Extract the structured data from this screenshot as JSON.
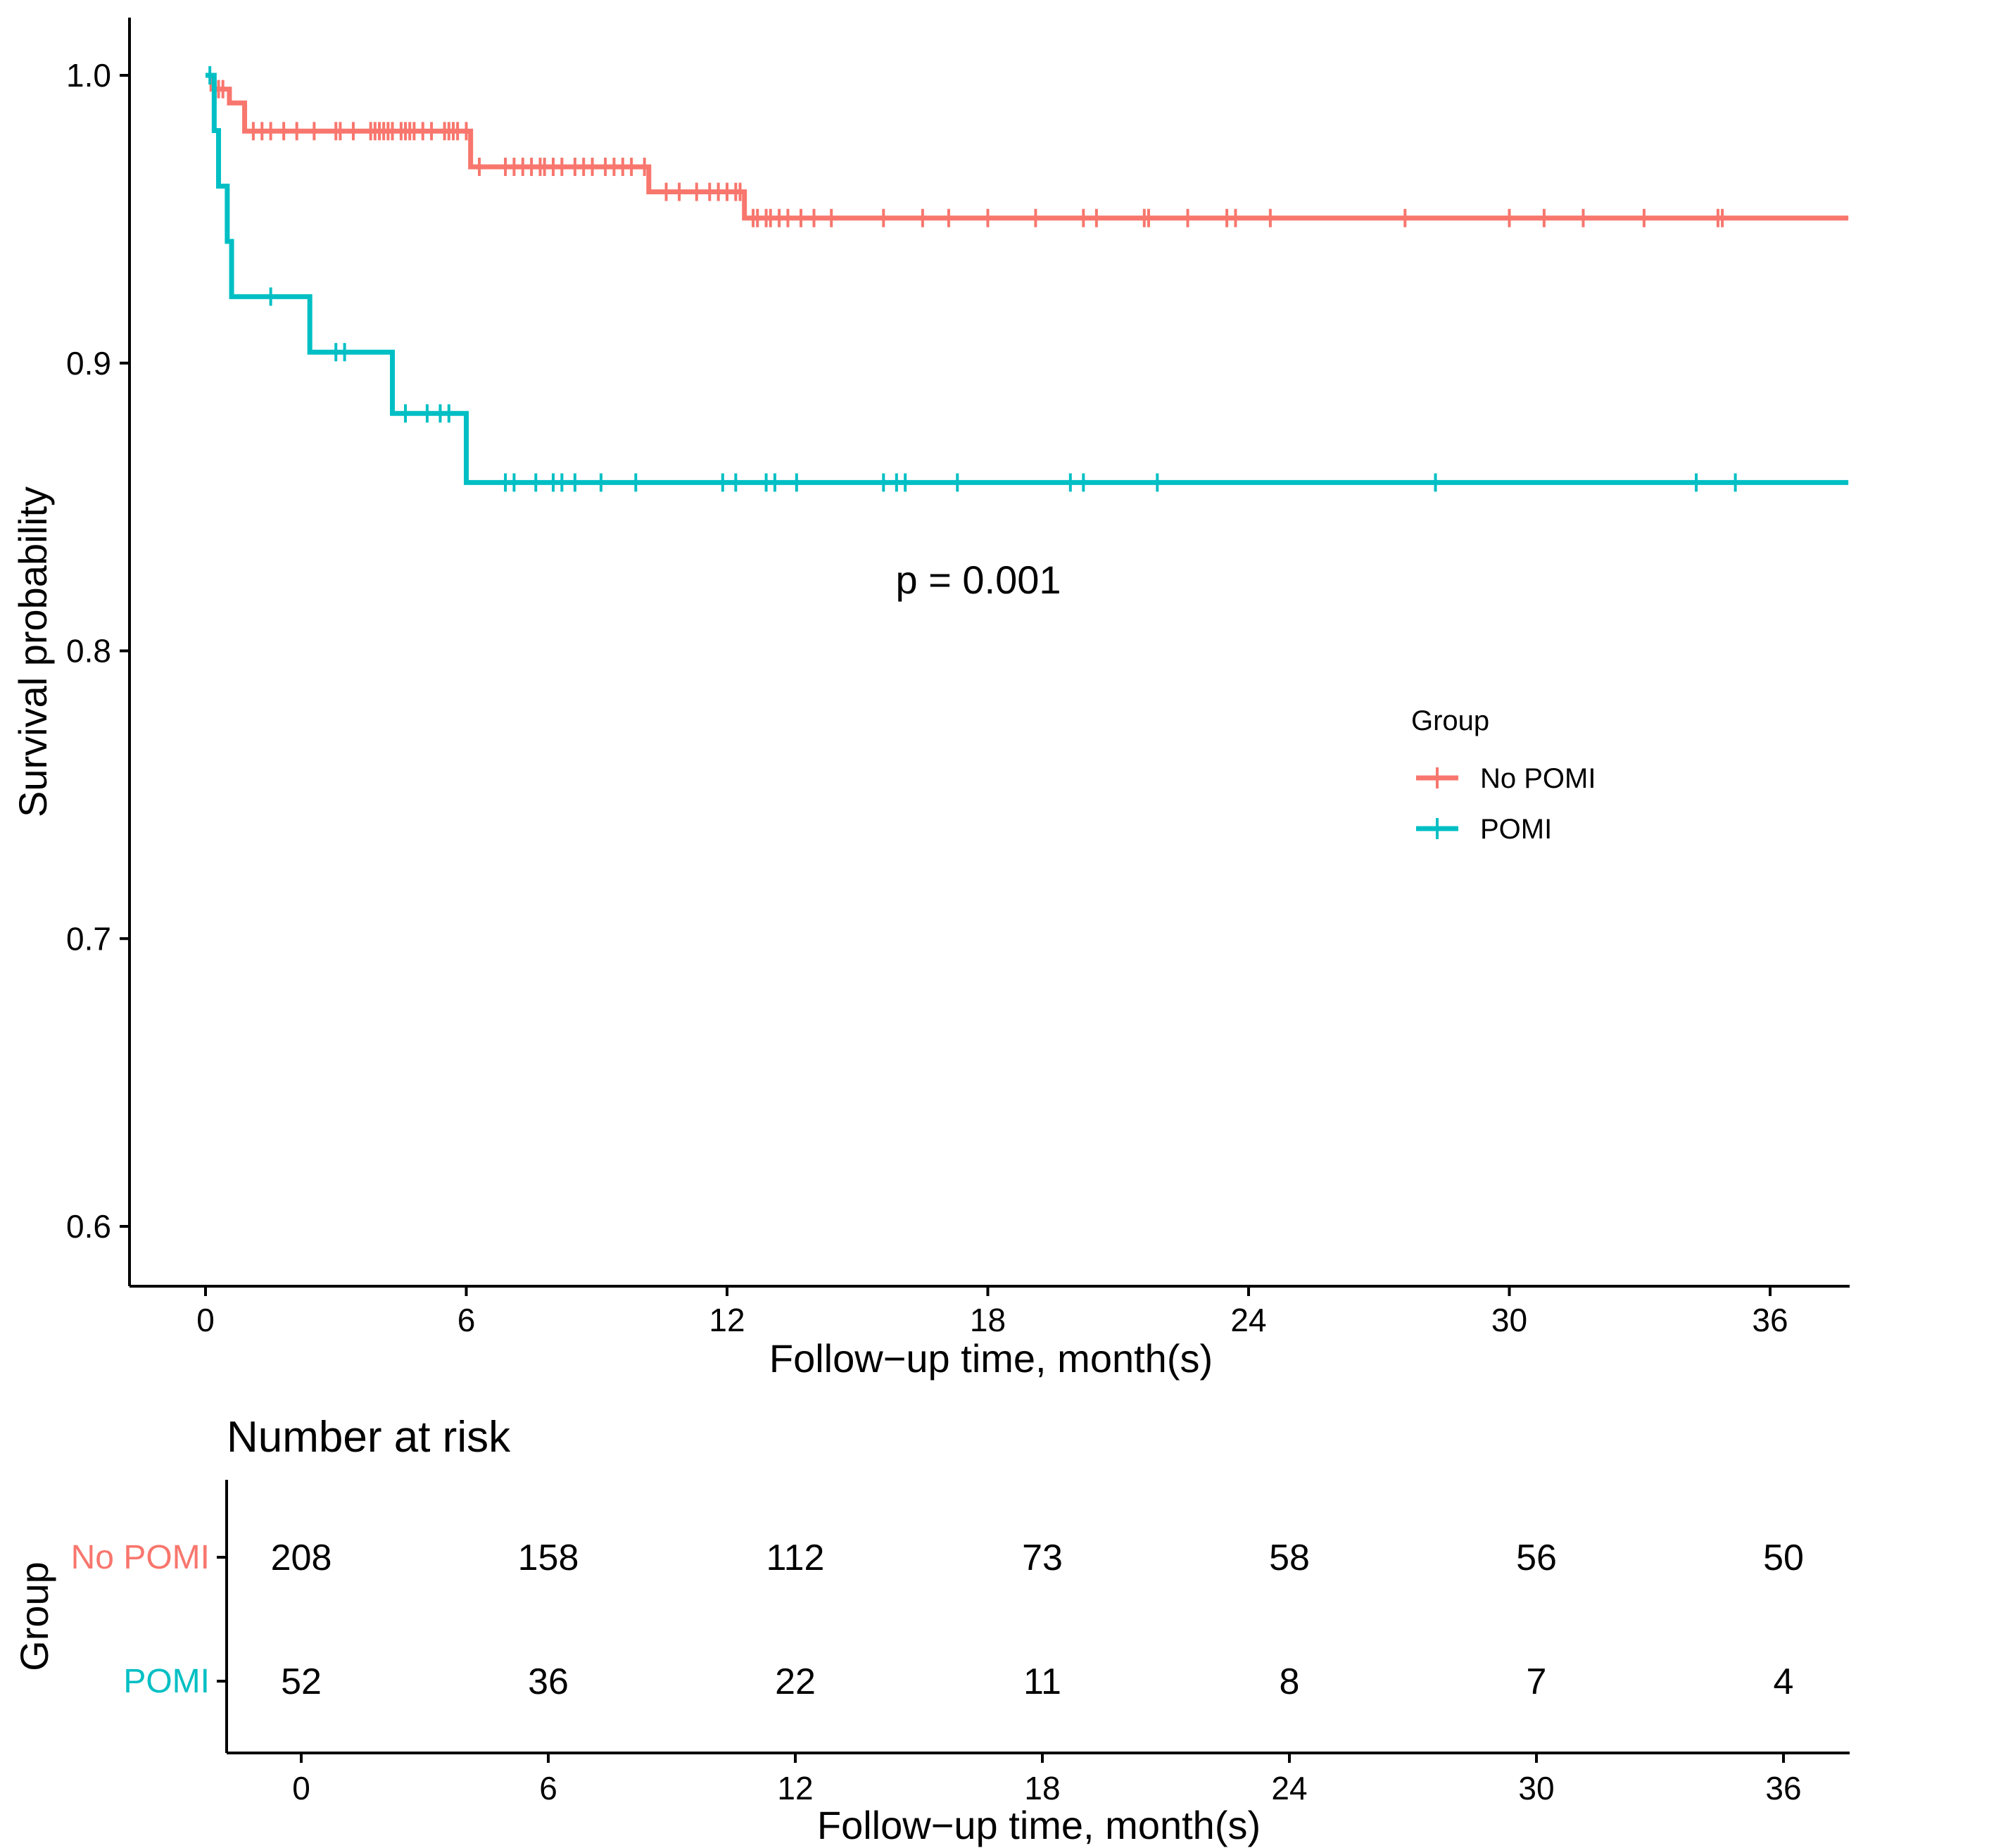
{
  "chart_data": {
    "type": "line",
    "subtype": "kaplan-meier",
    "ylabel": "Survival probability",
    "xlabel": "Follow−up time, month(s)",
    "xlim": [
      -3.6,
      37.8
    ],
    "ylim": [
      0.58,
      1.0
    ],
    "xticks": [
      0,
      6,
      12,
      18,
      24,
      30,
      36
    ],
    "yticks": [
      0.6,
      0.7,
      0.8,
      0.9,
      1.0
    ],
    "ytick_labels": [
      "0.6",
      "0.7",
      "0.8",
      "0.9",
      "1.0"
    ],
    "p_value": "p = 0.001",
    "legend": {
      "title": "Group",
      "position": "right"
    },
    "series": [
      {
        "name": "No POMI",
        "color": "#F8766D",
        "steps": [
          [
            0,
            1.0
          ],
          [
            0.15,
            0.9952
          ],
          [
            0.55,
            0.9904
          ],
          [
            0.9,
            0.9806
          ],
          [
            6.1,
            0.9682
          ],
          [
            10.2,
            0.9595
          ],
          [
            12.4,
            0.9504
          ]
        ],
        "end_x": 37.8,
        "censor_times": [
          0.2,
          0.3,
          0.4,
          1.1,
          1.3,
          1.5,
          1.8,
          2.1,
          2.5,
          3.0,
          3.1,
          3.4,
          3.8,
          3.9,
          4.0,
          4.1,
          4.2,
          4.3,
          4.5,
          4.6,
          4.7,
          4.8,
          5.0,
          5.2,
          5.5,
          5.6,
          5.7,
          5.8,
          6.0,
          6.3,
          6.9,
          7.1,
          7.3,
          7.5,
          7.7,
          7.8,
          8.0,
          8.2,
          8.5,
          8.7,
          8.9,
          9.2,
          9.4,
          9.6,
          9.8,
          10.1,
          10.6,
          10.9,
          11.3,
          11.6,
          11.8,
          12.0,
          12.2,
          12.3,
          12.6,
          12.7,
          12.9,
          13.0,
          13.2,
          13.4,
          13.7,
          14.0,
          14.4,
          15.6,
          16.5,
          17.1,
          18.0,
          19.1,
          20.2,
          20.5,
          21.6,
          21.7,
          22.6,
          23.5,
          23.7,
          24.5,
          27.6,
          30.0,
          30.8,
          31.7,
          33.1,
          34.8,
          34.9
        ]
      },
      {
        "name": "POMI",
        "color": "#00BFC4",
        "steps": [
          [
            0,
            1.0
          ],
          [
            0.2,
            0.9808
          ],
          [
            0.3,
            0.9615
          ],
          [
            0.5,
            0.9423
          ],
          [
            0.6,
            0.9231
          ],
          [
            2.4,
            0.9038
          ],
          [
            4.3,
            0.8825
          ],
          [
            6.0,
            0.8585
          ]
        ],
        "end_x": 37.8,
        "censor_times": [
          0.1,
          1.5,
          3.0,
          3.2,
          4.6,
          5.1,
          5.4,
          5.6,
          6.9,
          7.1,
          7.6,
          8.0,
          8.2,
          8.5,
          9.1,
          9.9,
          11.9,
          12.2,
          12.9,
          13.1,
          13.6,
          15.6,
          15.9,
          16.1,
          17.3,
          19.9,
          20.2,
          21.9,
          28.3,
          34.3,
          35.2
        ]
      }
    ]
  },
  "risk_table": {
    "title": "Number at risk",
    "ylabel": "Group",
    "xlabel": "Follow−up time, month(s)",
    "times": [
      0,
      6,
      12,
      18,
      24,
      30,
      36
    ],
    "time_labels": [
      "0",
      "6",
      "12",
      "18",
      "24",
      "30",
      "36"
    ],
    "rows": [
      {
        "group": "No POMI",
        "color": "#F8766D",
        "counts": [
          "208",
          "158",
          "112",
          "73",
          "58",
          "56",
          "50"
        ]
      },
      {
        "group": "POMI",
        "color": "#00BFC4",
        "counts": [
          "52",
          "36",
          "22",
          "11",
          "8",
          "7",
          "4"
        ]
      }
    ]
  }
}
